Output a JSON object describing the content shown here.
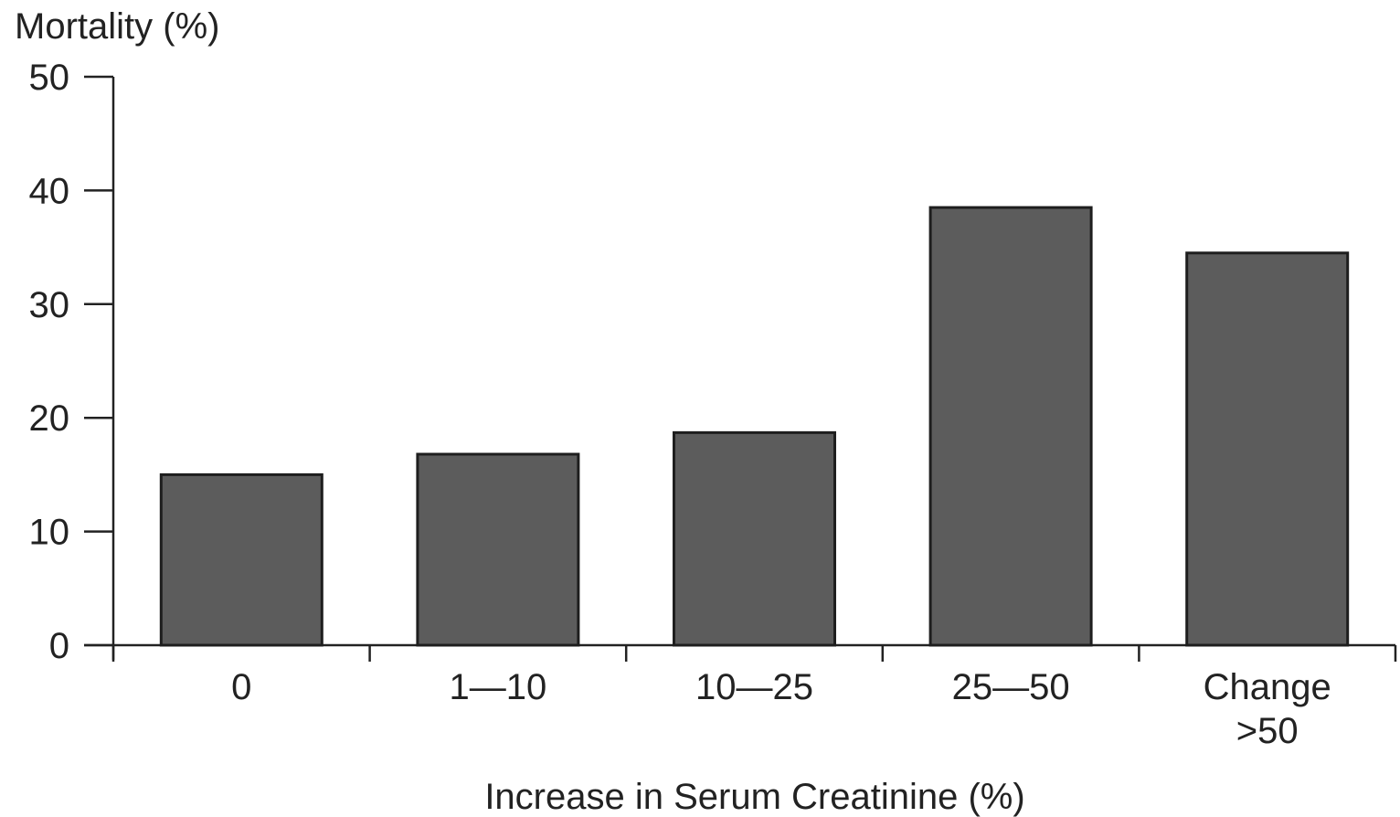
{
  "chart_data": {
    "type": "bar",
    "ylabel": "Mortality (%)",
    "xlabel": "Increase in Serum Creatinine (%)",
    "categories": [
      "0",
      "1—10",
      "10—25",
      "25—50",
      "Change\n>50"
    ],
    "values": [
      15,
      16.8,
      18.7,
      38.5,
      34.5
    ],
    "ylim": [
      0,
      50
    ],
    "yticks": [
      0,
      10,
      20,
      30,
      40,
      50
    ],
    "grid": false,
    "legend": "none",
    "colors": {
      "bar": "#5c5c5c",
      "bar_edge": "#1e1e1e",
      "axis": "#222222"
    }
  }
}
